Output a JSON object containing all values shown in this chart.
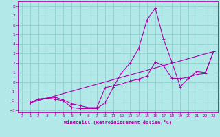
{
  "xlabel": "Windchill (Refroidissement éolien,°C)",
  "bg_color": "#b2e8e8",
  "grid_color": "#90cece",
  "line_color": "#aa00aa",
  "xlim": [
    -0.5,
    23.5
  ],
  "ylim": [
    -3.2,
    8.5
  ],
  "xticks": [
    0,
    1,
    2,
    3,
    4,
    5,
    6,
    7,
    8,
    9,
    10,
    11,
    12,
    13,
    14,
    15,
    16,
    17,
    18,
    19,
    20,
    21,
    22,
    23
  ],
  "yticks": [
    -3,
    -2,
    -1,
    0,
    1,
    2,
    3,
    4,
    5,
    6,
    7,
    8
  ],
  "line1_x": [
    1,
    2,
    3,
    4,
    5,
    6,
    7,
    8,
    9,
    10,
    11,
    12,
    13,
    14,
    15,
    16,
    17,
    18,
    19,
    20,
    21,
    22,
    23
  ],
  "line1_y": [
    -2.2,
    -1.8,
    -1.7,
    -1.8,
    -2.0,
    -2.7,
    -2.8,
    -2.8,
    -2.8,
    -2.2,
    -0.5,
    1.0,
    2.0,
    3.5,
    6.5,
    7.8,
    4.5,
    2.1,
    -0.5,
    0.4,
    1.1,
    1.0,
    3.2
  ],
  "line2_x": [
    1,
    2,
    3,
    4,
    5,
    6,
    7,
    8,
    9,
    10,
    11,
    12,
    13,
    14,
    15,
    16,
    17,
    18,
    19,
    20,
    21,
    22,
    23
  ],
  "line2_y": [
    -2.2,
    -1.8,
    -1.7,
    -1.6,
    -1.9,
    -2.3,
    -2.5,
    -2.7,
    -2.7,
    -0.6,
    -0.4,
    -0.2,
    0.1,
    0.3,
    0.6,
    2.1,
    1.7,
    0.4,
    0.35,
    0.5,
    0.8,
    0.9,
    3.2
  ],
  "line3_x": [
    1,
    23
  ],
  "line3_y": [
    -2.2,
    3.2
  ]
}
